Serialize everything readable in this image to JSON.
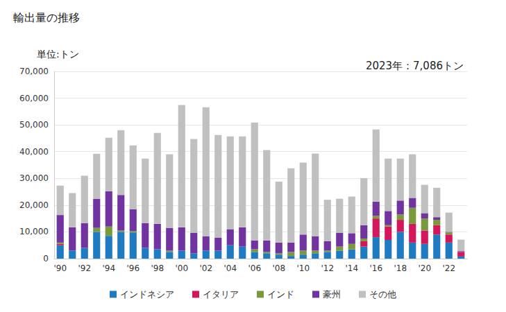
{
  "chart_data": {
    "type": "bar",
    "title": "輸出量の推移",
    "y_label": "単位:トン",
    "annotation": "2023年：7,086トン",
    "stacked": true,
    "grid": true,
    "legend": "bottom",
    "categories": [
      "'90",
      null,
      "'92",
      null,
      "'94",
      null,
      "'96",
      null,
      "'98",
      null,
      "'00",
      null,
      "'02",
      null,
      "'04",
      null,
      "'06",
      null,
      "'08",
      null,
      "'10",
      null,
      "'12",
      null,
      "'14",
      null,
      "'16",
      null,
      "'18",
      null,
      "'20",
      null,
      "'22",
      null
    ],
    "series": [
      {
        "name": "インドネシア",
        "color": "#1f7bc1",
        "values": [
          5000,
          3000,
          4000,
          10000,
          8500,
          10000,
          9800,
          4000,
          3500,
          2500,
          3000,
          2000,
          3000,
          3000,
          5000,
          4500,
          2500,
          2000,
          1500,
          1000,
          1500,
          2000,
          2500,
          3000,
          3500,
          4500,
          8000,
          7000,
          10000,
          6000,
          5500,
          9000,
          6000,
          800
        ]
      },
      {
        "name": "イタリア",
        "color": "#d4175a",
        "values": [
          500,
          0,
          0,
          0,
          0,
          0,
          0,
          0,
          0,
          0,
          0,
          0,
          0,
          0,
          0,
          0,
          0,
          0,
          0,
          0,
          0,
          0,
          0,
          0,
          0,
          2000,
          7000,
          5000,
          4500,
          7000,
          5000,
          3500,
          3000,
          1700
        ]
      },
      {
        "name": "インド",
        "color": "#7a993a",
        "values": [
          500,
          0,
          0,
          1500,
          3500,
          500,
          500,
          0,
          0,
          500,
          0,
          0,
          0,
          0,
          0,
          0,
          1000,
          500,
          500,
          1500,
          1500,
          1000,
          500,
          1500,
          2000,
          1000,
          1000,
          500,
          2000,
          6000,
          4500,
          2000,
          800,
          0
        ]
      },
      {
        "name": "豪州",
        "color": "#7033a0",
        "values": [
          10300,
          8700,
          9300,
          10800,
          13200,
          13300,
          8200,
          9300,
          9500,
          8500,
          8700,
          7700,
          5300,
          4800,
          6000,
          7200,
          3300,
          4300,
          4000,
          3500,
          6000,
          5300,
          3500,
          5200,
          4000,
          5000,
          5300,
          5300,
          5200,
          3700,
          2000,
          1000,
          200,
          300
        ]
      },
      {
        "name": "その他",
        "color": "#c0c0c0",
        "values": [
          11000,
          12800,
          17700,
          16900,
          20000,
          24200,
          23800,
          24100,
          34000,
          27500,
          45700,
          35000,
          48300,
          38400,
          34700,
          34000,
          44100,
          33800,
          22800,
          27800,
          26900,
          31000,
          15500,
          12700,
          13700,
          17600,
          27000,
          19600,
          15700,
          16300,
          10600,
          11000,
          7200,
          4286
        ]
      }
    ],
    "ylim": [
      0,
      70000
    ],
    "yticks": [
      0,
      {
        "value": 10000,
        "label": "10,000"
      },
      {
        "value": 20000,
        "label": "20,000"
      },
      {
        "value": 30000,
        "label": "30,000"
      },
      {
        "value": 40000,
        "label": "40,000"
      },
      {
        "value": 50000,
        "label": "50,000"
      },
      {
        "value": 60000,
        "label": "60,000"
      },
      {
        "value": 70000,
        "label": "70,000"
      }
    ]
  }
}
